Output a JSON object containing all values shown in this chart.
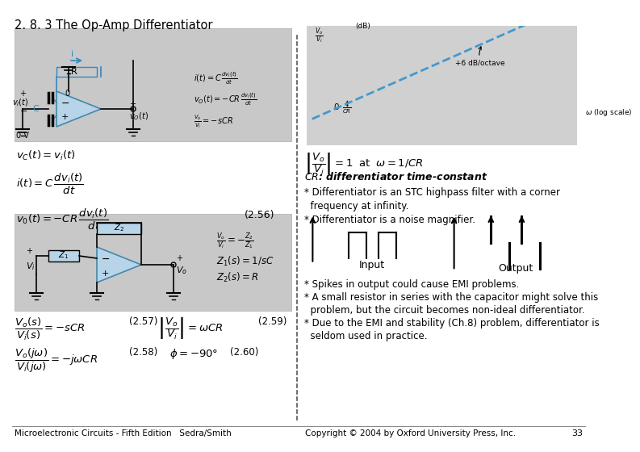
{
  "title": "2. 8. 3 The Op-Amp Differentiator",
  "bg_color": "#ffffff",
  "circuit_bg": "#c8c8c8",
  "graph_bg": "#d0d0d0",
  "graph_line_color": "#4499cc",
  "footer_left": "Microelectronic Circuits - Fifth Edition   Sedra/Smith",
  "footer_right": "Copyright © 2004 by Oxford University Press, Inc.",
  "footer_page": "33",
  "bullets_right": [
    "* Differentiator is an STC highpass filter with a corner",
    "  frequency at infinity.",
    "* Differentiator is a noise magnifier."
  ],
  "bullets_bottom": [
    "* Spikes in output could cause EMI problems.",
    "* A small resistor in series with the capacitor might solve this",
    "  problem, but the circuit becomes non-ideal differentiator.",
    "* Due to the EMI and stability (Ch.8) problem, differentiator is",
    "  seldom used in practice."
  ],
  "input_label": "Input",
  "output_label": "Output",
  "divider_color": "#888888"
}
